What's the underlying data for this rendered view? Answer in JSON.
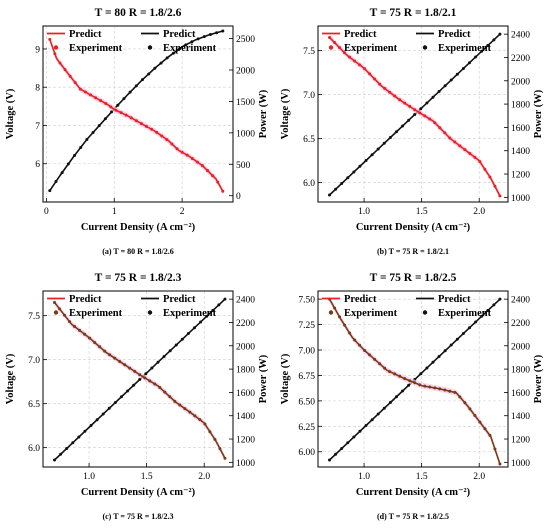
{
  "chart_data": [
    {
      "type": "line",
      "title": "T = 80   R = 1.8/2.6",
      "caption": "(a) T = 80   R = 1.8/2.6",
      "xlabel": "Current Density (A cm⁻²)",
      "ylabel_left": "Voltage (V)",
      "ylabel_right": "Power (W)",
      "xlim": [
        -0.05,
        2.75
      ],
      "ylim_left": [
        5.0,
        9.6
      ],
      "ylim_right": [
        -100,
        2700
      ],
      "x_ticks": [
        {
          "v": 0,
          "label": "0"
        },
        {
          "v": 1,
          "label": "1"
        },
        {
          "v": 2,
          "label": "2"
        }
      ],
      "y_left_ticks": [
        {
          "v": 6,
          "label": "6"
        },
        {
          "v": 7,
          "label": "7"
        },
        {
          "v": 8,
          "label": "8"
        },
        {
          "v": 9,
          "label": "9"
        }
      ],
      "y_right_ticks": [
        {
          "v": 0,
          "label": "0"
        },
        {
          "v": 500,
          "label": "500"
        },
        {
          "v": 1000,
          "label": "1000"
        },
        {
          "v": 1500,
          "label": "1500"
        },
        {
          "v": 2000,
          "label": "2000"
        },
        {
          "v": 2500,
          "label": "2500"
        }
      ],
      "grid": true,
      "legend": "top",
      "colors": {
        "voltage": "#e8231f",
        "power": "#111111",
        "band": "#f4c8ec"
      },
      "series": [
        {
          "name": "Predict",
          "axis": "left",
          "kind": "line",
          "color": "#e8231f"
        },
        {
          "name": "Experiment",
          "axis": "left",
          "kind": "points",
          "color": "#e8231f"
        },
        {
          "name": "Predict",
          "axis": "right",
          "kind": "line",
          "color": "#111111"
        },
        {
          "name": "Experiment",
          "axis": "right",
          "kind": "points",
          "color": "#111111"
        }
      ],
      "voltage": {
        "x": [
          0.05,
          0.15,
          0.3,
          0.5,
          0.7,
          0.9,
          1.0,
          1.2,
          1.4,
          1.6,
          1.8,
          1.95,
          2.1,
          2.3,
          2.5,
          2.6
        ],
        "y": [
          9.25,
          8.75,
          8.4,
          7.95,
          7.75,
          7.55,
          7.42,
          7.25,
          7.05,
          6.85,
          6.6,
          6.35,
          6.2,
          5.95,
          5.6,
          5.28
        ]
      },
      "power": {
        "x": [
          0.05,
          0.2,
          0.4,
          0.6,
          0.8,
          1.0,
          1.2,
          1.4,
          1.6,
          1.8,
          2.0,
          2.2,
          2.4,
          2.6
        ],
        "y": [
          80,
          320,
          620,
          900,
          1140,
          1380,
          1610,
          1830,
          2030,
          2210,
          2370,
          2480,
          2560,
          2620
        ]
      }
    },
    {
      "type": "line",
      "title": "T = 75    R = 1.8/2.1",
      "caption": "(b) T = 75   R = 1.8/2.1",
      "xlabel": "Current Density (A cm⁻²)",
      "ylabel_left": "Voltage (V)",
      "ylabel_right": "Power (W)",
      "xlim": [
        0.6,
        2.25
      ],
      "ylim_left": [
        5.78,
        7.78
      ],
      "ylim_right": [
        960,
        2470
      ],
      "x_ticks": [
        {
          "v": 1.0,
          "label": "1.0"
        },
        {
          "v": 1.5,
          "label": "1.5"
        },
        {
          "v": 2.0,
          "label": "2.0"
        }
      ],
      "y_left_ticks": [
        {
          "v": 6.0,
          "label": "6.0"
        },
        {
          "v": 6.5,
          "label": "6.5"
        },
        {
          "v": 7.0,
          "label": "7.0"
        },
        {
          "v": 7.5,
          "label": "7.5"
        }
      ],
      "y_right_ticks": [
        {
          "v": 1000,
          "label": "1000"
        },
        {
          "v": 1200,
          "label": "1200"
        },
        {
          "v": 1400,
          "label": "1400"
        },
        {
          "v": 1600,
          "label": "1600"
        },
        {
          "v": 1800,
          "label": "1800"
        },
        {
          "v": 2000,
          "label": "2000"
        },
        {
          "v": 2200,
          "label": "2200"
        },
        {
          "v": 2400,
          "label": "2400"
        }
      ],
      "grid": true,
      "legend": "top",
      "colors": {
        "voltage": "#e8231f",
        "power": "#111111",
        "band": "#f4c8ec"
      },
      "series": [
        {
          "name": "Predict",
          "axis": "left",
          "kind": "line",
          "color": "#e8231f"
        },
        {
          "name": "Experiment",
          "axis": "left",
          "kind": "points",
          "color": "#e8231f"
        },
        {
          "name": "Predict",
          "axis": "right",
          "kind": "line",
          "color": "#111111"
        },
        {
          "name": "Experiment",
          "axis": "right",
          "kind": "points",
          "color": "#111111"
        }
      ],
      "voltage": {
        "x": [
          0.7,
          0.85,
          1.0,
          1.15,
          1.3,
          1.45,
          1.6,
          1.75,
          1.9,
          2.0,
          2.1,
          2.18
        ],
        "y": [
          7.65,
          7.45,
          7.3,
          7.1,
          6.95,
          6.82,
          6.7,
          6.5,
          6.35,
          6.25,
          6.05,
          5.85
        ]
      },
      "power": {
        "x": [
          0.7,
          0.85,
          1.0,
          1.15,
          1.3,
          1.45,
          1.6,
          1.75,
          1.9,
          2.05,
          2.18
        ],
        "y": [
          1020,
          1160,
          1300,
          1440,
          1580,
          1720,
          1860,
          2000,
          2140,
          2280,
          2400
        ]
      }
    },
    {
      "type": "line",
      "title": "T = 75    R = 1.8/2.3",
      "caption": "(c) T = 75   R = 1.8/2.3",
      "xlabel": "Current Density (A cm⁻²)",
      "ylabel_left": "Voltage (V)",
      "ylabel_right": "Power (W)",
      "xlim": [
        0.6,
        2.25
      ],
      "ylim_left": [
        5.78,
        7.78
      ],
      "ylim_right": [
        960,
        2470
      ],
      "x_ticks": [
        {
          "v": 1.0,
          "label": "1.0"
        },
        {
          "v": 1.5,
          "label": "1.5"
        },
        {
          "v": 2.0,
          "label": "2.0"
        }
      ],
      "y_left_ticks": [
        {
          "v": 6.0,
          "label": "6.0"
        },
        {
          "v": 6.5,
          "label": "6.5"
        },
        {
          "v": 7.0,
          "label": "7.0"
        },
        {
          "v": 7.5,
          "label": "7.5"
        }
      ],
      "y_right_ticks": [
        {
          "v": 1000,
          "label": "1000"
        },
        {
          "v": 1200,
          "label": "1200"
        },
        {
          "v": 1400,
          "label": "1400"
        },
        {
          "v": 1600,
          "label": "1600"
        },
        {
          "v": 1800,
          "label": "1800"
        },
        {
          "v": 2000,
          "label": "2000"
        },
        {
          "v": 2200,
          "label": "2200"
        },
        {
          "v": 2400,
          "label": "2400"
        }
      ],
      "grid": true,
      "legend": "top",
      "colors": {
        "voltage": "#7a3b14",
        "power": "#111111",
        "band": "#f4c8ec"
      },
      "series": [
        {
          "name": "Predict",
          "axis": "left",
          "kind": "line",
          "color": "#e8231f"
        },
        {
          "name": "Experiment",
          "axis": "left",
          "kind": "points",
          "color": "#7a3b14"
        },
        {
          "name": "Predict",
          "axis": "right",
          "kind": "line",
          "color": "#111111"
        },
        {
          "name": "Experiment",
          "axis": "right",
          "kind": "points",
          "color": "#111111"
        }
      ],
      "voltage": {
        "x": [
          0.7,
          0.85,
          1.0,
          1.15,
          1.3,
          1.45,
          1.6,
          1.75,
          1.9,
          2.0,
          2.1,
          2.18
        ],
        "y": [
          7.65,
          7.4,
          7.25,
          7.08,
          6.95,
          6.82,
          6.7,
          6.52,
          6.38,
          6.28,
          6.08,
          5.88
        ]
      },
      "power": {
        "x": [
          0.7,
          0.85,
          1.0,
          1.15,
          1.3,
          1.45,
          1.6,
          1.75,
          1.9,
          2.05,
          2.18
        ],
        "y": [
          1020,
          1160,
          1300,
          1440,
          1580,
          1720,
          1860,
          2000,
          2140,
          2280,
          2400
        ]
      }
    },
    {
      "type": "line",
      "title": "T = 75    R = 1.8/2.5",
      "caption": "(d) T = 75   R = 1.8/2.5",
      "xlabel": "Current Density (A cm⁻²)",
      "ylabel_left": "Voltage (V)",
      "ylabel_right": "Power (W)",
      "xlim": [
        0.6,
        2.25
      ],
      "ylim_left": [
        5.85,
        7.58
      ],
      "ylim_right": [
        960,
        2470
      ],
      "x_ticks": [
        {
          "v": 1.0,
          "label": "1.0"
        },
        {
          "v": 1.5,
          "label": "1.5"
        },
        {
          "v": 2.0,
          "label": "2.0"
        }
      ],
      "y_left_ticks": [
        {
          "v": 6.0,
          "label": "6.00"
        },
        {
          "v": 6.25,
          "label": "6.25"
        },
        {
          "v": 6.5,
          "label": "6.50"
        },
        {
          "v": 6.75,
          "label": "6.75"
        },
        {
          "v": 7.0,
          "label": "7.00"
        },
        {
          "v": 7.25,
          "label": "7.25"
        },
        {
          "v": 7.5,
          "label": "7.50"
        }
      ],
      "y_right_ticks": [
        {
          "v": 1000,
          "label": "1000"
        },
        {
          "v": 1200,
          "label": "1200"
        },
        {
          "v": 1400,
          "label": "1400"
        },
        {
          "v": 1600,
          "label": "1600"
        },
        {
          "v": 1800,
          "label": "1800"
        },
        {
          "v": 2000,
          "label": "2000"
        },
        {
          "v": 2200,
          "label": "2200"
        },
        {
          "v": 2400,
          "label": "2400"
        }
      ],
      "grid": true,
      "legend": "top",
      "colors": {
        "voltage": "#7a3b14",
        "power": "#111111",
        "band": "#f4c8ec"
      },
      "series": [
        {
          "name": "Predict",
          "axis": "left",
          "kind": "line",
          "color": "#e8231f"
        },
        {
          "name": "Experiment",
          "axis": "left",
          "kind": "points",
          "color": "#7a3b14"
        },
        {
          "name": "Predict",
          "axis": "right",
          "kind": "line",
          "color": "#111111"
        },
        {
          "name": "Experiment",
          "axis": "right",
          "kind": "points",
          "color": "#111111"
        }
      ],
      "voltage": {
        "x": [
          0.7,
          0.8,
          0.9,
          1.0,
          1.1,
          1.2,
          1.35,
          1.5,
          1.65,
          1.8,
          1.9,
          2.0,
          2.1,
          2.18
        ],
        "y": [
          7.5,
          7.3,
          7.12,
          7.0,
          6.9,
          6.8,
          6.72,
          6.65,
          6.62,
          6.58,
          6.45,
          6.3,
          6.15,
          5.88
        ]
      },
      "power": {
        "x": [
          0.7,
          0.85,
          1.0,
          1.15,
          1.3,
          1.45,
          1.6,
          1.75,
          1.9,
          2.05,
          2.18
        ],
        "y": [
          1020,
          1160,
          1300,
          1440,
          1580,
          1720,
          1860,
          2000,
          2140,
          2280,
          2400
        ]
      }
    }
  ]
}
